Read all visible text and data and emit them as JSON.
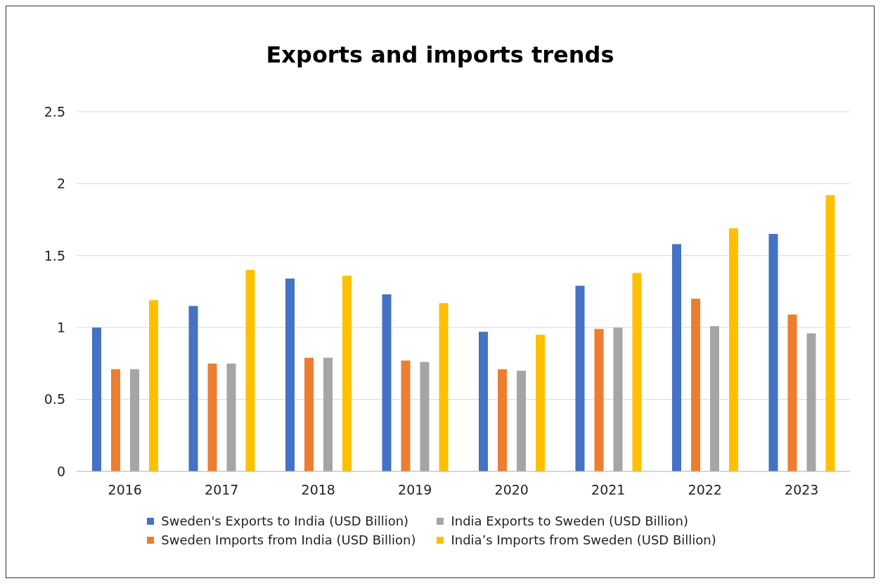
{
  "chart_data": {
    "type": "bar",
    "title": "Exports and imports trends",
    "categories": [
      "2016",
      "2017",
      "2018",
      "2019",
      "2020",
      "2021",
      "2022",
      "2023"
    ],
    "series": [
      {
        "name": "Sweden's Exports to India (USD Billion)",
        "color": "#4472c4",
        "values": [
          1.0,
          1.15,
          1.34,
          1.23,
          0.97,
          1.29,
          1.58,
          1.65
        ]
      },
      {
        "name": "Sweden Imports from India (USD Billion)",
        "color": "#ed7d31",
        "values": [
          0.71,
          0.75,
          0.79,
          0.77,
          0.71,
          0.99,
          1.2,
          1.09
        ]
      },
      {
        "name": "India Exports to Sweden (USD Billion)",
        "color": "#a5a5a5",
        "values": [
          0.71,
          0.75,
          0.79,
          0.76,
          0.7,
          1.0,
          1.01,
          0.96
        ]
      },
      {
        "name": "India’s Imports from Sweden (USD Billion)",
        "color": "#ffc000",
        "values": [
          1.19,
          1.4,
          1.36,
          1.17,
          0.95,
          1.38,
          1.69,
          1.92
        ]
      }
    ],
    "ylim": [
      0,
      2.5
    ],
    "yticks": [
      0,
      0.5,
      1,
      1.5,
      2,
      2.5
    ],
    "grid": "y",
    "legend": "bottom"
  }
}
